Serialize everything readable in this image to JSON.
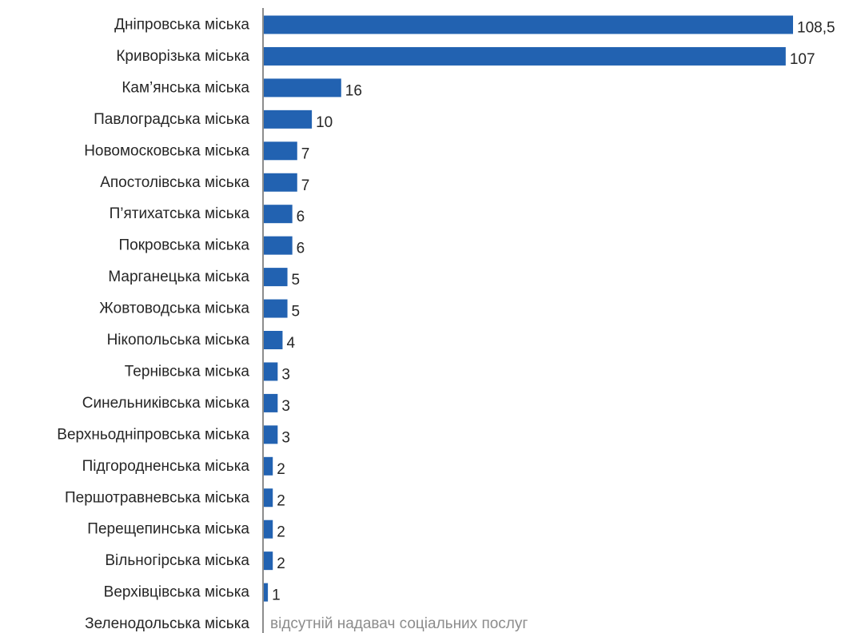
{
  "chart_data": {
    "type": "bar",
    "orientation": "horizontal",
    "categories": [
      "Дніпровська міська",
      "Криворізька міська",
      "Кам’янська міська",
      "Павлоградська міська",
      "Новомосковська міська",
      "Апостолівська міська",
      "П’ятихатська міська",
      "Покровська міська",
      "Марганецька міська",
      "Жовтоводська міська",
      "Нікопольська міська",
      "Тернівська міська",
      "Синельниківська міська",
      "Верхньодніпровська міська",
      "Підгородненська міська",
      "Першотравневська міська",
      "Перещепинська міська",
      "Вільногірська міська",
      "Верхівцівська міська",
      "Зеленодольська міська"
    ],
    "values": [
      108.5,
      107,
      16,
      10,
      7,
      7,
      6,
      6,
      5,
      5,
      4,
      3,
      3,
      3,
      2,
      2,
      2,
      2,
      1,
      null
    ],
    "value_labels": [
      "108,5",
      "107",
      "16",
      "10",
      "7",
      "7",
      "6",
      "6",
      "5",
      "5",
      "4",
      "3",
      "3",
      "3",
      "2",
      "2",
      "2",
      "2",
      "1",
      ""
    ],
    "missing_note": "відсутній надавач соціальних послуг",
    "xlim": [
      0,
      108.5
    ],
    "grid": false,
    "legend": "none",
    "bar_color": "#2262b1",
    "axis_color": "#8c8c8c"
  }
}
